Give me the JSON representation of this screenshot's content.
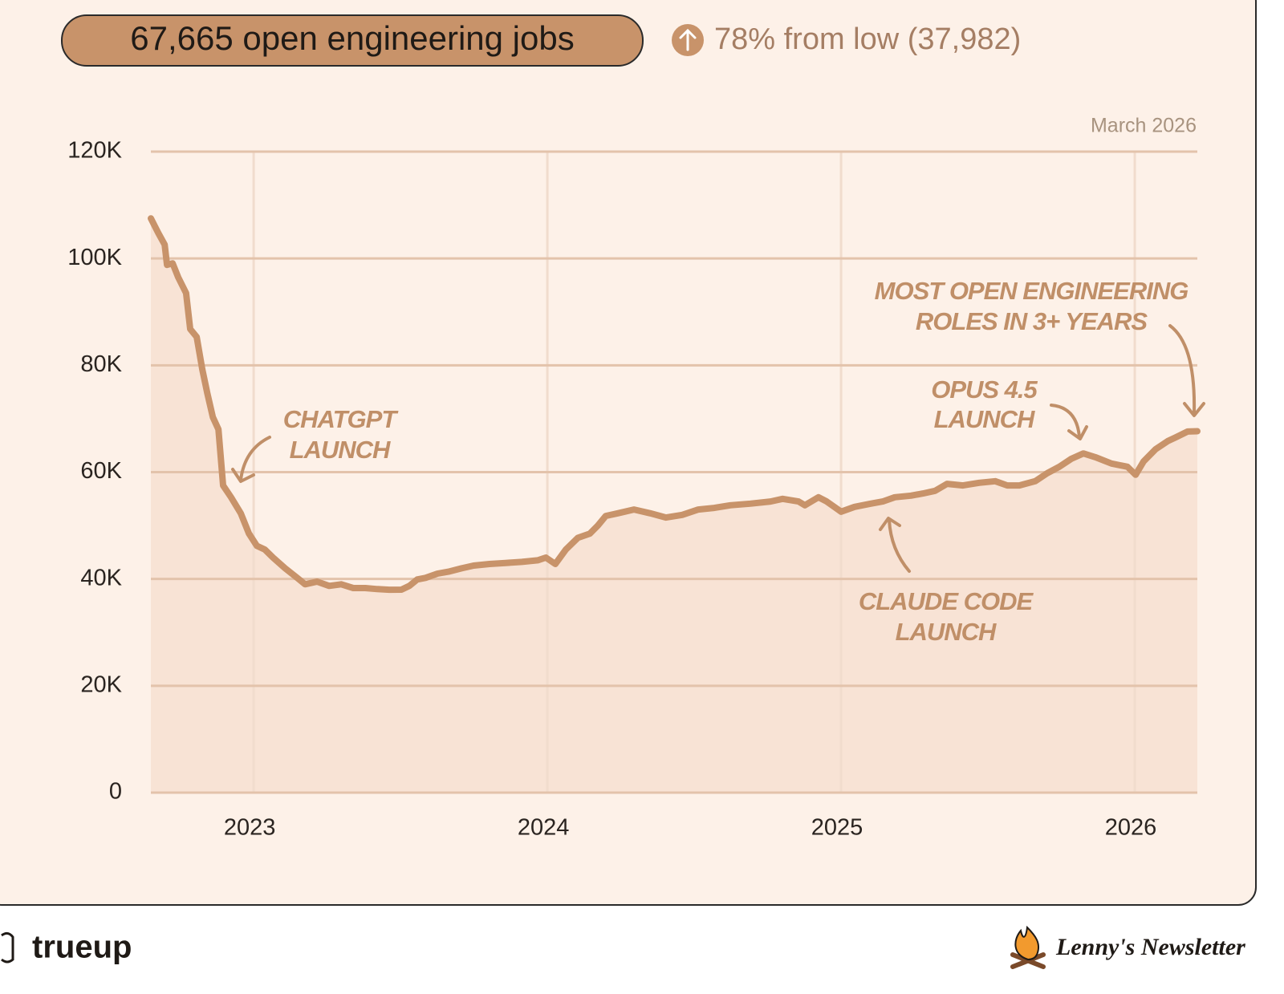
{
  "chart_data": {
    "type": "line",
    "title": "67,665 open engineering jobs",
    "subtitle": "78% from low (37,982)",
    "date_label": "March 2026",
    "color": "#c8936a",
    "fill_color": "#f8e3d5",
    "grid": true,
    "xlim": [
      2022.65,
      2026.213
    ],
    "xticks": [
      2023,
      2024,
      2025,
      2026
    ],
    "ylim": [
      0,
      120000
    ],
    "yticks": [
      0,
      {
        "value": 20000,
        "label": "20K"
      },
      {
        "value": 40000,
        "label": "40K"
      },
      {
        "value": 60000,
        "label": "60K"
      },
      {
        "value": 80000,
        "label": "80K"
      },
      {
        "value": 100000,
        "label": "100K"
      },
      {
        "value": 120000,
        "label": "120K"
      }
    ],
    "x": [
      2022.65,
      2022.675,
      2022.697,
      2022.705,
      2022.724,
      2022.743,
      2022.77,
      2022.784,
      2022.806,
      2022.825,
      2022.842,
      2022.861,
      2022.88,
      2022.896,
      2022.923,
      2022.956,
      2022.984,
      2023.011,
      2023.038,
      2023.066,
      2023.107,
      2023.148,
      2023.175,
      2023.216,
      2023.257,
      2023.298,
      2023.339,
      2023.38,
      2023.421,
      2023.462,
      2023.503,
      2023.53,
      2023.557,
      2023.585,
      2023.626,
      2023.667,
      2023.708,
      2023.749,
      2023.803,
      2023.858,
      2023.913,
      2023.967,
      2023.995,
      2024.027,
      2024.063,
      2024.104,
      2024.145,
      2024.172,
      2024.199,
      2024.24,
      2024.295,
      2024.35,
      2024.404,
      2024.459,
      2024.514,
      2024.568,
      2024.623,
      2024.691,
      2024.76,
      2024.801,
      2024.855,
      2024.877,
      2024.923,
      2024.951,
      2025.0,
      2025.046,
      2025.101,
      2025.142,
      2025.183,
      2025.238,
      2025.279,
      2025.32,
      2025.361,
      2025.415,
      2025.47,
      2025.525,
      2025.566,
      2025.607,
      2025.661,
      2025.702,
      2025.743,
      2025.784,
      2025.825,
      2025.866,
      2025.921,
      2025.975,
      2026.003,
      2026.03,
      2026.071,
      2026.112,
      2026.139,
      2026.18,
      2026.213
    ],
    "values": [
      107500,
      104800,
      102600,
      98800,
      99100,
      96500,
      93500,
      86800,
      85300,
      79300,
      74800,
      70300,
      68000,
      57500,
      55300,
      52300,
      48500,
      46200,
      45500,
      44000,
      42000,
      40200,
      39000,
      39500,
      38700,
      39000,
      38300,
      38300,
      38100,
      37982,
      38000,
      38700,
      39900,
      40200,
      41000,
      41400,
      42000,
      42500,
      42800,
      43000,
      43200,
      43500,
      44000,
      42800,
      45500,
      47700,
      48500,
      50000,
      51800,
      52300,
      53000,
      52300,
      51500,
      52000,
      53000,
      53300,
      53800,
      54100,
      54500,
      55000,
      54500,
      53800,
      55300,
      54500,
      52600,
      53500,
      54100,
      54500,
      55300,
      55600,
      56000,
      56500,
      57800,
      57500,
      58000,
      58300,
      57500,
      57500,
      58300,
      59800,
      61000,
      62500,
      63500,
      62800,
      61600,
      61000,
      59500,
      62000,
      64300,
      65800,
      66500,
      67600,
      67665
    ],
    "annotations": [
      [
        "CHATGPT",
        "LAUNCH"
      ],
      [
        "MOST OPEN ENGINEERING",
        "ROLES IN 3+ YEARS"
      ],
      [
        "OPUS 4.5",
        "LAUNCH"
      ],
      [
        "CLAUDE CODE",
        "LAUNCH"
      ]
    ]
  },
  "footer": {
    "left": "trueup",
    "right": "Lenny's Newsletter"
  }
}
